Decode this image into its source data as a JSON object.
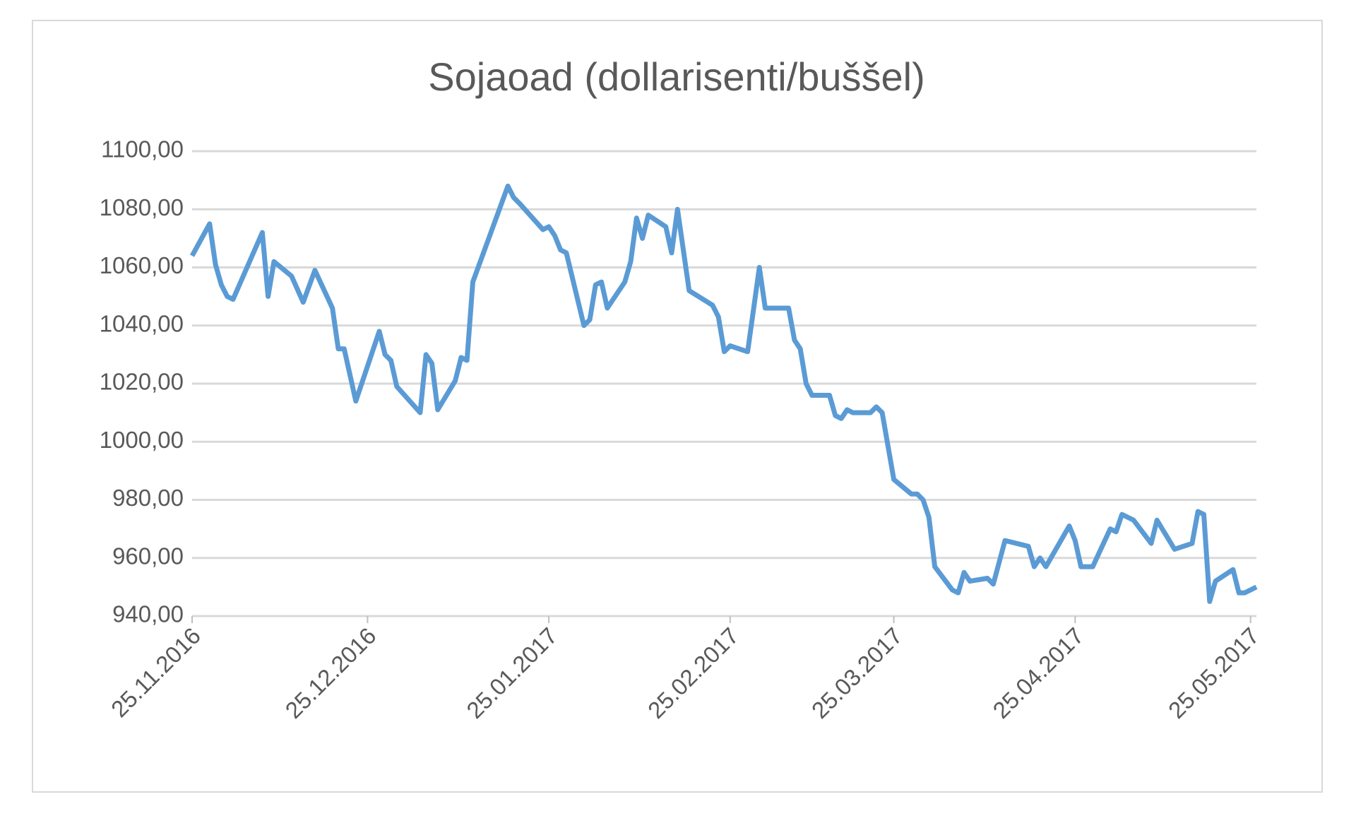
{
  "chart_data": {
    "type": "line",
    "title": "Sojaoad (dollarisenti/buššel)",
    "x": [
      "2016-11-25",
      "2016-11-28",
      "2016-11-29",
      "2016-11-30",
      "2016-12-01",
      "2016-12-02",
      "2016-12-07",
      "2016-12-08",
      "2016-12-09",
      "2016-12-12",
      "2016-12-14",
      "2016-12-16",
      "2016-12-19",
      "2016-12-20",
      "2016-12-21",
      "2016-12-23",
      "2016-12-27",
      "2016-12-28",
      "2016-12-29",
      "2016-12-30",
      "2017-01-03",
      "2017-01-04",
      "2017-01-05",
      "2017-01-06",
      "2017-01-09",
      "2017-01-10",
      "2017-01-11",
      "2017-01-12",
      "2017-01-18",
      "2017-01-19",
      "2017-01-20",
      "2017-01-24",
      "2017-01-25",
      "2017-01-26",
      "2017-01-27",
      "2017-01-28",
      "2017-01-31",
      "2017-02-01",
      "2017-02-02",
      "2017-02-03",
      "2017-02-04",
      "2017-02-07",
      "2017-02-08",
      "2017-02-09",
      "2017-02-10",
      "2017-02-11",
      "2017-02-14",
      "2017-02-15",
      "2017-02-16",
      "2017-02-18",
      "2017-02-22",
      "2017-02-23",
      "2017-02-24",
      "2017-02-25",
      "2017-02-28",
      "2017-03-02",
      "2017-03-03",
      "2017-03-07",
      "2017-03-08",
      "2017-03-09",
      "2017-03-10",
      "2017-03-11",
      "2017-03-14",
      "2017-03-15",
      "2017-03-16",
      "2017-03-17",
      "2017-03-18",
      "2017-03-21",
      "2017-03-22",
      "2017-03-23",
      "2017-03-25",
      "2017-03-28",
      "2017-03-29",
      "2017-03-30",
      "2017-03-31",
      "2017-04-01",
      "2017-04-04",
      "2017-04-05",
      "2017-04-06",
      "2017-04-07",
      "2017-04-10",
      "2017-04-11",
      "2017-04-13",
      "2017-04-17",
      "2017-04-18",
      "2017-04-19",
      "2017-04-20",
      "2017-04-24",
      "2017-04-25",
      "2017-04-26",
      "2017-04-27",
      "2017-04-28",
      "2017-05-01",
      "2017-05-02",
      "2017-05-03",
      "2017-05-05",
      "2017-05-08",
      "2017-05-09",
      "2017-05-12",
      "2017-05-15",
      "2017-05-16",
      "2017-05-17",
      "2017-05-18",
      "2017-05-19",
      "2017-05-22",
      "2017-05-23",
      "2017-05-24",
      "2017-05-26"
    ],
    "series": [
      {
        "name": "Sojaoad",
        "color": "#5b9bd5",
        "values": [
          1064,
          1075,
          1061,
          1054,
          1050,
          1049,
          1072,
          1050,
          1062,
          1057,
          1048,
          1059,
          1046,
          1032,
          1032,
          1014,
          1038,
          1030,
          1028,
          1019,
          1010,
          1030,
          1027,
          1011,
          1021,
          1029,
          1028,
          1055,
          1088,
          1084,
          1082,
          1073,
          1074,
          1071,
          1066,
          1065,
          1040,
          1042,
          1054,
          1055,
          1046,
          1055,
          1062,
          1077,
          1070,
          1078,
          1074,
          1065,
          1080,
          1052,
          1047,
          1043,
          1031,
          1033,
          1031,
          1060,
          1046,
          1046,
          1035,
          1032,
          1020,
          1016,
          1016,
          1009,
          1008,
          1011,
          1010,
          1010,
          1012,
          1010,
          987,
          982,
          982,
          980,
          974,
          957,
          949,
          948,
          955,
          952,
          953,
          951,
          966,
          964,
          957,
          960,
          957,
          971,
          966,
          957,
          957,
          957,
          970,
          969,
          975,
          973,
          965,
          973,
          963,
          965,
          976,
          975,
          945,
          952,
          956,
          948,
          948,
          950
        ]
      }
    ],
    "xlim": [
      "2016-11-25",
      "2017-05-26"
    ],
    "xticks": [
      {
        "value": "2016-11-25",
        "label": "25.11.2016"
      },
      {
        "value": "2016-12-25",
        "label": "25.12.2016"
      },
      {
        "value": "2017-01-25",
        "label": "25.01.2017"
      },
      {
        "value": "2017-02-25",
        "label": "25.02.2017"
      },
      {
        "value": "2017-03-25",
        "label": "25.03.2017"
      },
      {
        "value": "2017-04-25",
        "label": "25.04.2017"
      },
      {
        "value": "2017-05-25",
        "label": "25.05.2017"
      }
    ],
    "ylim": [
      940,
      1100
    ],
    "yticks": [
      {
        "value": 940,
        "label": "940,00"
      },
      {
        "value": 960,
        "label": "960,00"
      },
      {
        "value": 980,
        "label": "980,00"
      },
      {
        "value": 1000,
        "label": "1000,00"
      },
      {
        "value": 1020,
        "label": "1020,00"
      },
      {
        "value": 1040,
        "label": "1040,00"
      },
      {
        "value": 1060,
        "label": "1060,00"
      },
      {
        "value": 1080,
        "label": "1080,00"
      },
      {
        "value": 1100,
        "label": "1100,00"
      }
    ],
    "grid": true
  }
}
